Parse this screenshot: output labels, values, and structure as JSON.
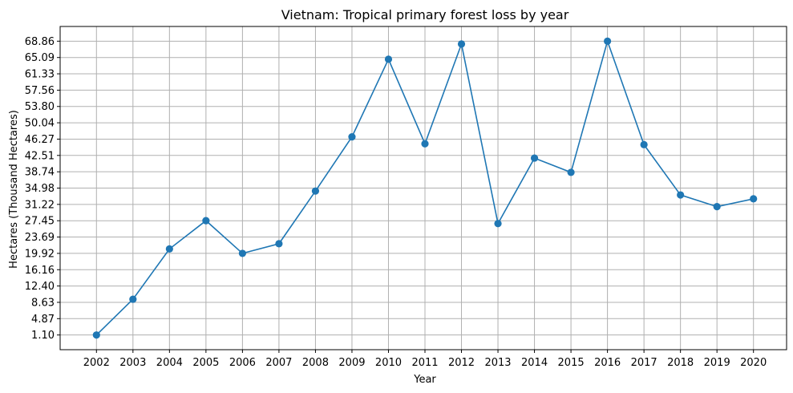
{
  "chart_data": {
    "type": "line",
    "title": "Vietnam: Tropical primary forest loss by year",
    "xlabel": "Year",
    "ylabel": "Hectares (Thousand Hectares)",
    "x": [
      "2002",
      "2003",
      "2004",
      "2005",
      "2006",
      "2007",
      "2008",
      "2009",
      "2010",
      "2011",
      "2012",
      "2013",
      "2014",
      "2015",
      "2016",
      "2017",
      "2018",
      "2019",
      "2020"
    ],
    "series": [
      {
        "values": [
          1.1,
          9.35,
          20.94,
          27.47,
          19.92,
          22.15,
          34.3,
          46.8,
          64.7,
          45.2,
          68.2,
          26.8,
          41.9,
          38.6,
          68.86,
          45.0,
          33.4,
          30.7,
          32.5
        ],
        "color": "#1f77b4",
        "marker": "circle"
      }
    ],
    "yticks": [
      "1.10",
      "4.87",
      "8.63",
      "12.40",
      "16.16",
      "19.92",
      "23.69",
      "27.45",
      "31.22",
      "34.98",
      "38.74",
      "42.51",
      "46.27",
      "50.04",
      "53.80",
      "57.56",
      "61.33",
      "65.09",
      "68.86"
    ],
    "ylim": [
      -2.29,
      72.25
    ],
    "grid": true,
    "legend": "none"
  }
}
